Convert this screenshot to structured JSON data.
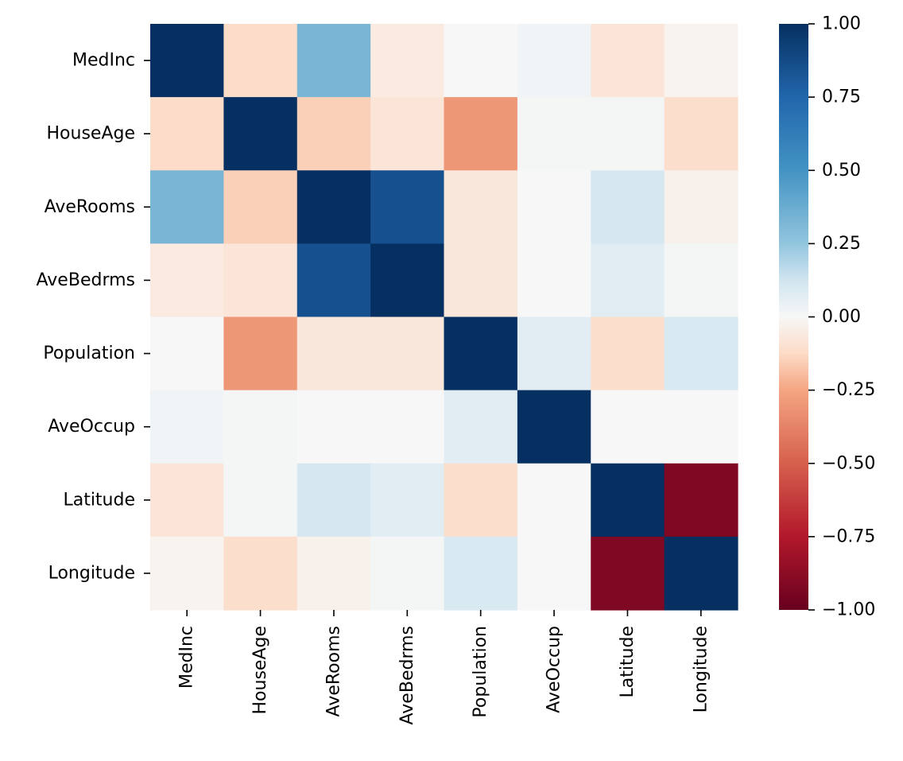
{
  "chart_data": {
    "type": "heatmap",
    "x_categories": [
      "MedInc",
      "HouseAge",
      "AveRooms",
      "AveBedrms",
      "Population",
      "AveOccup",
      "Latitude",
      "Longitude"
    ],
    "y_categories": [
      "MedInc",
      "HouseAge",
      "AveRooms",
      "AveBedrms",
      "Population",
      "AveOccup",
      "Latitude",
      "Longitude"
    ],
    "values": [
      [
        1.0,
        -0.12,
        0.33,
        -0.06,
        0.0,
        0.02,
        -0.08,
        -0.02
      ],
      [
        -0.12,
        1.0,
        -0.15,
        -0.08,
        -0.3,
        0.01,
        0.01,
        -0.11
      ],
      [
        0.33,
        -0.15,
        1.0,
        0.85,
        -0.07,
        0.0,
        0.11,
        -0.03
      ],
      [
        -0.06,
        -0.08,
        0.85,
        1.0,
        -0.07,
        0.0,
        0.07,
        0.01
      ],
      [
        0.0,
        -0.3,
        -0.07,
        -0.07,
        1.0,
        0.07,
        -0.11,
        0.1
      ],
      [
        0.02,
        0.01,
        0.0,
        0.0,
        0.07,
        1.0,
        0.0,
        0.0
      ],
      [
        -0.08,
        0.01,
        0.11,
        0.07,
        -0.11,
        0.0,
        1.0,
        -0.92
      ],
      [
        -0.02,
        -0.11,
        -0.03,
        0.01,
        0.1,
        0.0,
        -0.92,
        1.0
      ]
    ],
    "colormap": "RdBu",
    "vmin": -1.0,
    "vmax": 1.0,
    "colorbar_ticks": [
      "1.00",
      "0.75",
      "0.50",
      "0.25",
      "0.00",
      "−0.25",
      "−0.50",
      "−0.75",
      "−1.00"
    ],
    "colorbar_tick_values": [
      1.0,
      0.75,
      0.5,
      0.25,
      0.0,
      -0.25,
      -0.5,
      -0.75,
      -1.0
    ],
    "title": "",
    "xlabel": "",
    "ylabel": "",
    "grid": false,
    "legend": "colorbar-right"
  }
}
